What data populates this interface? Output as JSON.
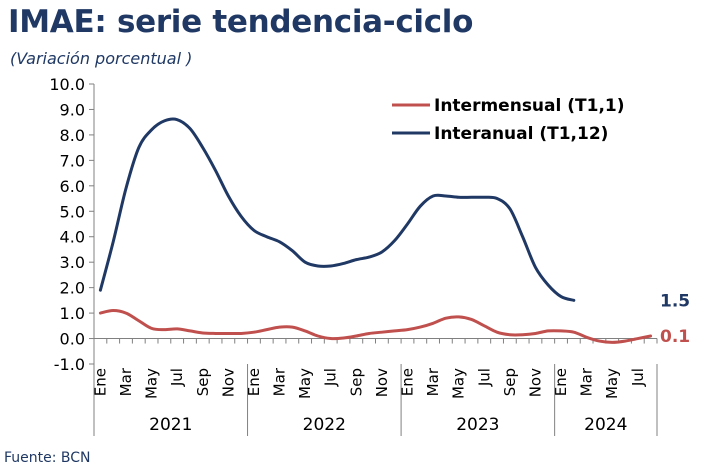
{
  "title": "IMAE: serie tendencia-ciclo",
  "subtitle": "(Variación porcentual )",
  "source": "Fuente: BCN",
  "colors": {
    "intermensual": "#c0504d",
    "interanual": "#1f3864",
    "title": "#1f3864"
  },
  "chart_data": {
    "type": "line",
    "ylim": [
      -1.0,
      10.0
    ],
    "y_ticks": [
      "10.0",
      "9.0",
      "8.0",
      "7.0",
      "6.0",
      "5.0",
      "4.0",
      "3.0",
      "2.0",
      "1.0",
      "0.0",
      "-1.0"
    ],
    "x_tick_labels": [
      "Ene",
      "Mar",
      "May",
      "Jul",
      "Sep",
      "Nov",
      "Ene",
      "Mar",
      "May",
      "Jul",
      "Sep",
      "Nov",
      "Ene",
      "Mar",
      "May",
      "Jul",
      "Sep",
      "Nov",
      "Ene",
      "Mar",
      "May",
      "Jul"
    ],
    "years": [
      {
        "label": "2021",
        "months": 12
      },
      {
        "label": "2022",
        "months": 12
      },
      {
        "label": "2023",
        "months": 12
      },
      {
        "label": "2024",
        "months": 8
      }
    ],
    "grid": false,
    "legend": "top-right",
    "series": [
      {
        "name": "Intermensual (T1,1)",
        "end_label": "0.1",
        "values": [
          1.0,
          1.1,
          1.0,
          0.7,
          0.4,
          0.35,
          0.38,
          0.3,
          0.22,
          0.2,
          0.2,
          0.2,
          0.25,
          0.35,
          0.45,
          0.45,
          0.3,
          0.1,
          0.0,
          0.02,
          0.1,
          0.2,
          0.25,
          0.3,
          0.35,
          0.45,
          0.6,
          0.8,
          0.85,
          0.75,
          0.5,
          0.25,
          0.15,
          0.15,
          0.2,
          0.3,
          0.3,
          0.25,
          0.05,
          -0.1,
          -0.15,
          -0.1,
          0.0,
          0.1
        ]
      },
      {
        "name": "Interanual (T1,12)",
        "end_label": "1.5",
        "values": [
          1.9,
          3.8,
          5.9,
          7.5,
          8.2,
          8.55,
          8.6,
          8.25,
          7.5,
          6.6,
          5.6,
          4.8,
          4.25,
          4.0,
          3.8,
          3.45,
          3.0,
          2.85,
          2.85,
          2.95,
          3.1,
          3.2,
          3.4,
          3.85,
          4.5,
          5.2,
          5.6,
          5.6,
          5.55,
          5.55,
          5.55,
          5.5,
          5.1,
          4.0,
          2.8,
          2.1,
          1.65,
          1.5
        ]
      }
    ]
  }
}
